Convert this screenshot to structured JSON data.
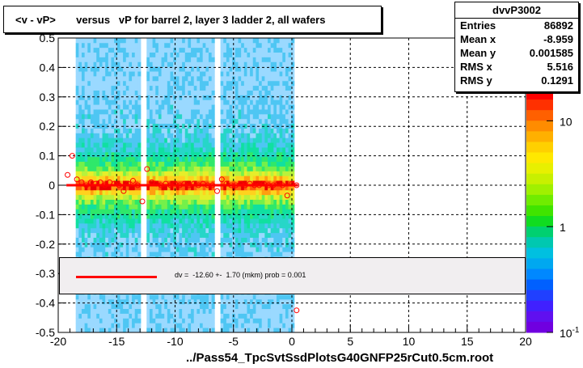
{
  "title": "<v - vP>       versus   vP for barrel 2, layer 3 ladder 2, all wafers",
  "xlabel": "../Pass54_TpcSvtSsdPlotsG40GNFP25rCut0.5cm.root",
  "stats": {
    "name": "dvvP3002",
    "rows": [
      {
        "label": "Entries",
        "value": "86892"
      },
      {
        "label": "Mean x",
        "value": "-8.959"
      },
      {
        "label": "Mean y",
        "value": "0.001585"
      },
      {
        "label": "RMS x",
        "value": "5.516"
      },
      {
        "label": "RMS y",
        "value": "0.1291"
      }
    ]
  },
  "legend": {
    "text": "dv =  -12.60 +-  1.70 (mkm) prob = 0.001",
    "color": "#ff0000"
  },
  "colors": {
    "fit_line": "#ff0000",
    "profile_marker": "#ff0000"
  },
  "chart_data": {
    "type": "heatmap",
    "title": "<v - vP>       versus   vP for barrel 2, layer 3 ladder 2, all wafers",
    "xlabel": "../Pass54_TpcSvtSsdPlotsG40GNFP25rCut0.5cm.root",
    "ylabel": "",
    "xlim": [
      -20,
      20
    ],
    "ylim": [
      -0.5,
      0.5
    ],
    "zscale": "log",
    "xticks": [
      -20,
      -15,
      -10,
      -5,
      0,
      5,
      10,
      15,
      20
    ],
    "yticks": [
      -0.5,
      -0.4,
      -0.3,
      -0.2,
      -0.1,
      0,
      0.1,
      0.2,
      0.3,
      0.4,
      0.5
    ],
    "zticks": [
      {
        "label": "10",
        "exp": "-1",
        "value": 0.1
      },
      {
        "label": "1",
        "value": 1
      },
      {
        "label": "10",
        "value": 10
      }
    ],
    "filled_x_range": [
      -18.5,
      0.2
    ],
    "gaps_x": [
      -12.9,
      -12.5,
      -6.5,
      -6.2
    ],
    "profile_points": [
      {
        "x": -19.2,
        "y": 0.035
      },
      {
        "x": -18.8,
        "y": 0.1
      },
      {
        "x": -18.4,
        "y": 0.02
      },
      {
        "x": -18.0,
        "y": 0.01
      },
      {
        "x": -17.6,
        "y": 0.0
      },
      {
        "x": -17.2,
        "y": 0.01
      },
      {
        "x": -16.8,
        "y": 0.005
      },
      {
        "x": -16.4,
        "y": 0.01
      },
      {
        "x": -16.0,
        "y": 0.0
      },
      {
        "x": -15.6,
        "y": 0.01
      },
      {
        "x": -15.2,
        "y": 0.005
      },
      {
        "x": -14.8,
        "y": 0.0
      },
      {
        "x": -14.4,
        "y": -0.02
      },
      {
        "x": -14.0,
        "y": 0.005
      },
      {
        "x": -13.6,
        "y": 0.015
      },
      {
        "x": -13.2,
        "y": 0.0
      },
      {
        "x": -12.8,
        "y": -0.055
      },
      {
        "x": -12.4,
        "y": 0.055
      },
      {
        "x": -12.0,
        "y": 0.01
      },
      {
        "x": -11.6,
        "y": 0.005
      },
      {
        "x": -11.2,
        "y": 0.0
      },
      {
        "x": -10.8,
        "y": 0.005
      },
      {
        "x": -10.4,
        "y": 0.0
      },
      {
        "x": -10.0,
        "y": 0.005
      },
      {
        "x": -9.6,
        "y": 0.0
      },
      {
        "x": -9.2,
        "y": 0.005
      },
      {
        "x": -8.8,
        "y": 0.0
      },
      {
        "x": -8.4,
        "y": 0.005
      },
      {
        "x": -8.0,
        "y": 0.0
      },
      {
        "x": -7.6,
        "y": 0.005
      },
      {
        "x": -7.2,
        "y": 0.0
      },
      {
        "x": -6.8,
        "y": 0.0
      },
      {
        "x": -6.4,
        "y": -0.02
      },
      {
        "x": -6.0,
        "y": 0.02
      },
      {
        "x": -5.6,
        "y": 0.005
      },
      {
        "x": -5.2,
        "y": 0.0
      },
      {
        "x": -4.8,
        "y": 0.0
      },
      {
        "x": -4.4,
        "y": 0.005
      },
      {
        "x": -4.0,
        "y": 0.0
      },
      {
        "x": -3.6,
        "y": 0.005
      },
      {
        "x": -3.2,
        "y": 0.0
      },
      {
        "x": -2.8,
        "y": 0.0
      },
      {
        "x": -2.4,
        "y": 0.005
      },
      {
        "x": -2.0,
        "y": 0.0
      },
      {
        "x": -1.6,
        "y": 0.0
      },
      {
        "x": -1.2,
        "y": 0.005
      },
      {
        "x": -0.8,
        "y": 0.0
      },
      {
        "x": -0.4,
        "y": -0.035
      },
      {
        "x": 0.0,
        "y": 0.005
      },
      {
        "x": 0.4,
        "y": 0.0
      },
      {
        "x": 0.4,
        "y": -0.425
      }
    ],
    "fit": {
      "x_range": [
        -19.3,
        0.5
      ],
      "y": 0.0
    }
  }
}
